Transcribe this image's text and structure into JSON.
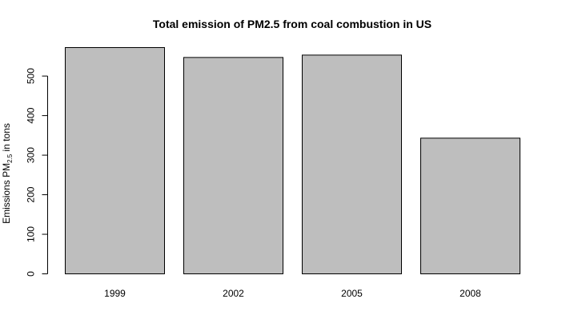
{
  "chart_data": {
    "type": "bar",
    "title": "Total emission of PM2.5 from coal combustion in US",
    "xlabel": "",
    "ylabel": {
      "prefix": "Emissions  PM",
      "subscript": "2.5",
      "suffix": " in tons"
    },
    "categories": [
      "1999",
      "2002",
      "2005",
      "2008"
    ],
    "values": [
      572,
      547,
      553,
      343
    ],
    "ylim": [
      0,
      572
    ],
    "yticks": [
      0,
      100,
      200,
      300,
      400,
      500
    ],
    "grid": false,
    "legend": "none",
    "bar_color": "#bebebe",
    "bar_border_color": "#000000"
  }
}
